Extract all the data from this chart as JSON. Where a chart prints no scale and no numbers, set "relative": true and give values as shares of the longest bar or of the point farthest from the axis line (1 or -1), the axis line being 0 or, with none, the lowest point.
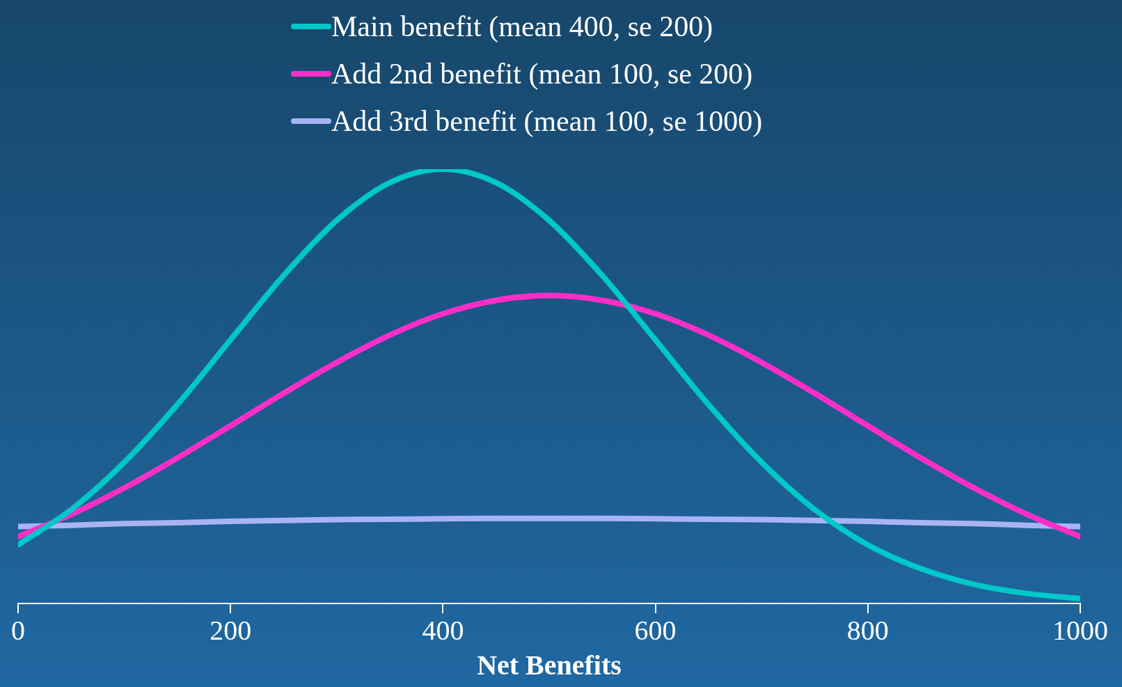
{
  "chart_data": {
    "type": "line",
    "relative": true,
    "xlabel": "Net Benefits",
    "legend": "top",
    "x": [
      0,
      50,
      100,
      150,
      200,
      250,
      300,
      350,
      400,
      450,
      500,
      550,
      600,
      650,
      700,
      750,
      800,
      850,
      900,
      950,
      1000
    ],
    "xlim": [
      0,
      1000
    ],
    "xticks": [
      0,
      200,
      400,
      600,
      800,
      1000
    ],
    "series": [
      {
        "name": "Main benefit (mean 400, se 200)",
        "color": "#00c8c8",
        "values": [
          0.135,
          0.216,
          0.325,
          0.458,
          0.607,
          0.755,
          0.882,
          0.969,
          1,
          0.969,
          0.882,
          0.755,
          0.607,
          0.458,
          0.325,
          0.216,
          0.135,
          0.08,
          0.044,
          0.023,
          0.011
        ]
      },
      {
        "name": "Add 2nd benefit (mean 100, se 200)",
        "color": "#ff2ec8",
        "values": [
          0.154,
          0.205,
          0.266,
          0.335,
          0.409,
          0.484,
          0.555,
          0.618,
          0.667,
          0.698,
          0.709,
          0.698,
          0.667,
          0.618,
          0.555,
          0.484,
          0.409,
          0.335,
          0.266,
          0.205,
          0.154
        ]
      },
      {
        "name": "Add 3rd benefit (mean 100, se 1000)",
        "color": "#a9b4f5",
        "values": [
          0.177,
          0.18,
          0.184,
          0.186,
          0.189,
          0.191,
          0.193,
          0.194,
          0.195,
          0.196,
          0.196,
          0.196,
          0.195,
          0.194,
          0.193,
          0.191,
          0.189,
          0.186,
          0.184,
          0.18,
          0.177
        ]
      }
    ]
  }
}
